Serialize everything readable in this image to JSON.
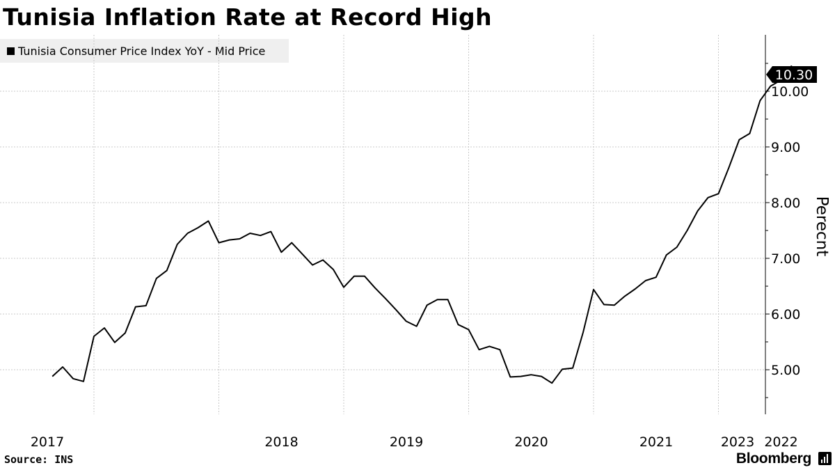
{
  "header": {
    "title": "Tunisia Inflation Rate at Record High"
  },
  "footer": {
    "source": "Source: INS",
    "brand": "Bloomberg"
  },
  "icons": {
    "brand": "bloomberg-terminal-icon"
  },
  "colors": {
    "line": "#000000",
    "grid": "#c8c8c8",
    "legend_bg": "#efefef",
    "background": "#ffffff"
  },
  "chart_data": {
    "type": "line",
    "title": "Tunisia Inflation Rate at Record High",
    "ylabel": "Perecnt",
    "xlabel": "",
    "ylim": [
      4.2,
      11.0
    ],
    "y_ticks": [
      5,
      6,
      7,
      8,
      9,
      10
    ],
    "y_tick_labels": [
      "5.00",
      "6.00",
      "7.00",
      "8.00",
      "9.00",
      "10.00"
    ],
    "x_tick_labels": [
      "2017",
      "2018",
      "2019",
      "2020",
      "2021",
      "2022",
      "2023"
    ],
    "grid": true,
    "legend_position": "top-left",
    "last_value_label": "10.30",
    "series": [
      {
        "name": "Tunisia Consumer Price Index YoY - Mid Price",
        "start": "2016-09",
        "values": [
          4.88,
          5.05,
          4.84,
          4.79,
          5.6,
          5.75,
          5.49,
          5.66,
          6.13,
          6.15,
          6.64,
          6.78,
          7.25,
          7.45,
          7.55,
          7.67,
          7.28,
          7.33,
          7.35,
          7.45,
          7.41,
          7.48,
          7.11,
          7.28,
          7.08,
          6.88,
          6.97,
          6.8,
          6.48,
          6.68,
          6.68,
          6.47,
          6.28,
          6.08,
          5.87,
          5.78,
          6.16,
          6.26,
          6.26,
          5.81,
          5.72,
          5.36,
          5.42,
          5.36,
          4.87,
          4.88,
          4.91,
          4.88,
          4.76,
          5.01,
          5.03,
          5.67,
          6.44,
          6.17,
          6.16,
          6.32,
          6.45,
          6.6,
          6.66,
          7.06,
          7.2,
          7.5,
          7.85,
          8.09,
          8.16,
          8.63,
          9.13,
          9.24,
          9.83,
          10.09,
          10.2,
          10.45,
          10.3
        ]
      }
    ]
  }
}
